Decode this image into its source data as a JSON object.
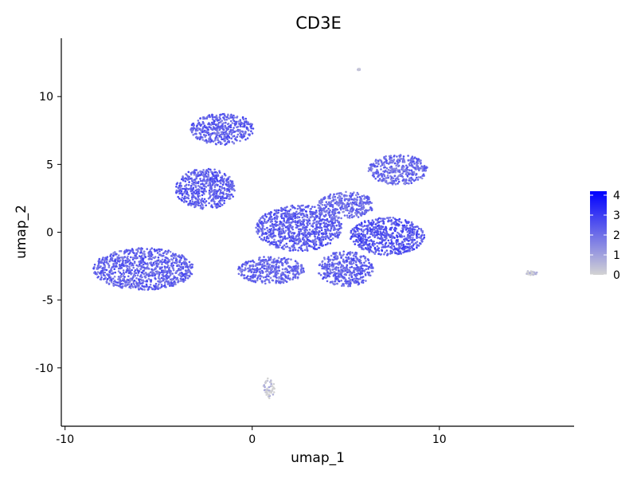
{
  "chart_data": {
    "type": "scatter",
    "title": "CD3E",
    "xlabel": "umap_1",
    "ylabel": "umap_2",
    "xlim": [
      -10.2,
      17.2
    ],
    "ylim": [
      -14.3,
      14.3
    ],
    "xticks": [
      -10,
      0,
      10
    ],
    "yticks": [
      -10,
      -5,
      0,
      5,
      10
    ],
    "legend": {
      "placement": "right",
      "min": 0,
      "max": 4.2,
      "ticks": [
        0,
        1,
        2,
        3,
        4
      ],
      "color_low": "#d3d3d3",
      "color_high": "#0000ff"
    },
    "clusters": [
      {
        "name": "left-bottom",
        "cx": -5.8,
        "cy": -2.7,
        "rx": 2.7,
        "ry": 1.55,
        "expression": 2.2
      },
      {
        "name": "left-top",
        "cx": -2.5,
        "cy": 3.2,
        "rx": 1.6,
        "ry": 1.5,
        "expression": 2.3
      },
      {
        "name": "top",
        "cx": -1.6,
        "cy": 7.6,
        "rx": 1.7,
        "ry": 1.15,
        "expression": 2.2
      },
      {
        "name": "center",
        "cx": 2.5,
        "cy": 0.3,
        "rx": 2.3,
        "ry": 1.7,
        "expression": 2.3
      },
      {
        "name": "center-low",
        "cx": 1.0,
        "cy": -2.8,
        "rx": 1.8,
        "ry": 1.0,
        "expression": 2.1
      },
      {
        "name": "right-low",
        "cx": 5.0,
        "cy": -2.7,
        "rx": 1.5,
        "ry": 1.3,
        "expression": 2.2
      },
      {
        "name": "right",
        "cx": 7.2,
        "cy": -0.3,
        "rx": 2.0,
        "ry": 1.4,
        "expression": 2.5
      },
      {
        "name": "right-top",
        "cx": 7.8,
        "cy": 4.6,
        "rx": 1.6,
        "ry": 1.1,
        "expression": 2.0
      },
      {
        "name": "mid-bridge",
        "cx": 5.0,
        "cy": 2.0,
        "rx": 1.5,
        "ry": 1.0,
        "expression": 2.0
      },
      {
        "name": "island-right",
        "cx": 14.9,
        "cy": -3.0,
        "rx": 0.35,
        "ry": 0.15,
        "expression": 0.3
      },
      {
        "name": "island-bottom",
        "cx": 0.9,
        "cy": -11.5,
        "rx": 0.3,
        "ry": 0.75,
        "expression": 0.3
      },
      {
        "name": "island-top",
        "cx": 5.7,
        "cy": 12.0,
        "rx": 0.06,
        "ry": 0.05,
        "expression": 0.5
      }
    ]
  }
}
